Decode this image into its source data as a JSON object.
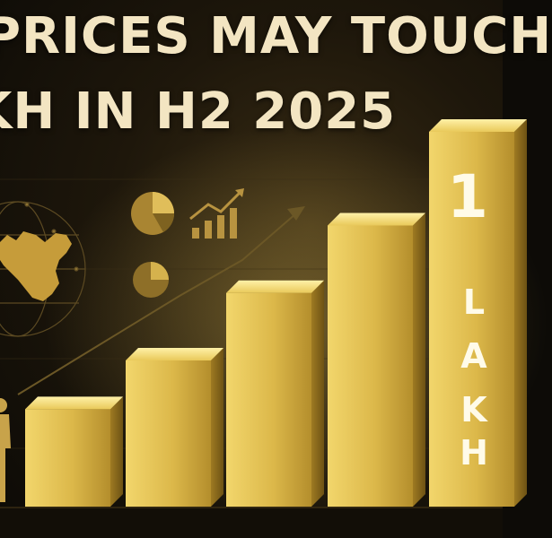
{
  "headline": {
    "line1": "PRICES MAY TOUCH",
    "line2": "KH IN H2 2025"
  },
  "tall_bar_text": {
    "number": "1",
    "letters": [
      "L",
      "A",
      "K",
      "H"
    ]
  },
  "bars": [
    {
      "relative_height": 0.26
    },
    {
      "relative_height": 0.39
    },
    {
      "relative_height": 0.57
    },
    {
      "relative_height": 0.75
    },
    {
      "relative_height": 1.0
    }
  ],
  "colors": {
    "background": "#1a140a",
    "gold_light": "#f4dc77",
    "gold_mid": "#d4b043",
    "gold_dark": "#8f6d1c",
    "icon": "#b89340",
    "headline": "#f3e5c2"
  },
  "icons": [
    "pie-chart-icon",
    "bar-chart-trend-icon",
    "pie-chart-small-icon",
    "india-map-icon",
    "globe-icon",
    "person-icon",
    "trend-arrow-icon"
  ]
}
